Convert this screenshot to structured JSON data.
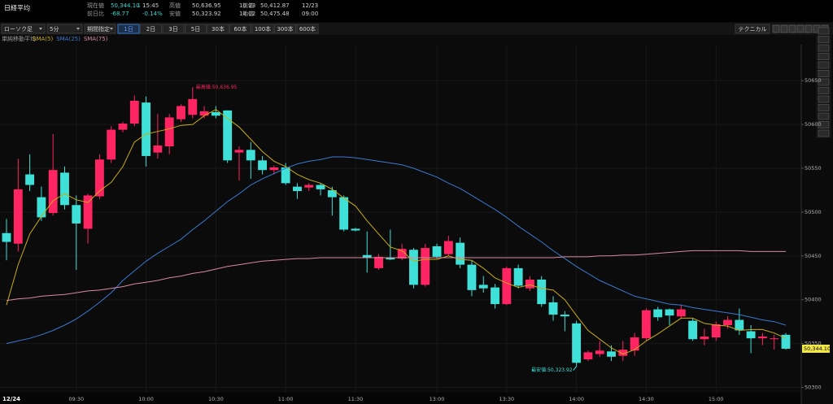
{
  "header": {
    "symbol": "日経平均",
    "quote": [
      {
        "label": "現在値",
        "value": "50,344.10",
        "arrow": "↓",
        "extra": "15:45"
      },
      {
        "label": "前日比",
        "value": "-68.77",
        "extra": "-0.14%"
      },
      {
        "label": "高値",
        "value": "50,636.95",
        "extra": "10:23"
      },
      {
        "label": "安値",
        "value": "50,323.92",
        "extra": "14:02"
      },
      {
        "label": "前値",
        "value": "50,412.87",
        "extra": "12/23"
      },
      {
        "label": "始値",
        "value": "50,475.48",
        "extra": "09:00"
      }
    ]
  },
  "toolbar": {
    "selects": [
      "ローソク足",
      "5分",
      "期間指定"
    ],
    "ranges": [
      "1日",
      "2日",
      "3日",
      "5日",
      "30本",
      "60本",
      "100本",
      "300本",
      "600本"
    ],
    "active": 0,
    "technical": "テクニカル"
  },
  "chart_data": {
    "type": "candlestick",
    "legend_title": "単純移動平均",
    "date_label": "12/24",
    "categories": [
      null,
      null,
      null,
      null,
      null,
      null,
      "09:30",
      null,
      null,
      null,
      null,
      null,
      "10:00",
      null,
      null,
      null,
      null,
      null,
      "10:30",
      null,
      null,
      null,
      null,
      null,
      "11:00",
      null,
      null,
      null,
      null,
      null,
      "11:30",
      null,
      null,
      null,
      null,
      null,
      null,
      "13:00",
      null,
      null,
      null,
      null,
      null,
      "13:30",
      null,
      null,
      null,
      null,
      null,
      "14:00",
      null,
      null,
      null,
      null,
      null,
      "14:30",
      null,
      null,
      null,
      null,
      null,
      "15:00",
      null,
      null,
      null,
      null,
      null,
      null
    ],
    "open": [
      50476,
      50464,
      50543,
      50517,
      50499,
      50545,
      50508,
      50481,
      50518,
      50560,
      50594,
      50601,
      50625,
      50568,
      50575,
      50606,
      50611,
      50610,
      50614,
      50616,
      50568,
      50571,
      50559,
      50548,
      50551,
      50529,
      50528,
      50531,
      50525,
      50517,
      50481,
      50451,
      50436,
      50448,
      50447,
      50457,
      50417,
      50461,
      50452,
      50465,
      50440,
      50417,
      50414,
      50395,
      50436,
      50413,
      50423,
      50397,
      50383,
      50373,
      50332,
      50338,
      50341,
      50336,
      50342,
      50356,
      50389,
      50389,
      50381,
      50376,
      50355,
      50357,
      50371,
      50377,
      50364,
      50356,
      50355,
      50360
    ],
    "high": [
      50492,
      50561,
      50566,
      50529,
      50589,
      50552,
      50519,
      50521,
      50566,
      50598,
      50603,
      50633,
      50632,
      50612,
      50612,
      50623,
      50636.95,
      50621,
      50621,
      50616,
      50575,
      50580,
      50564,
      50553,
      50556,
      50533,
      50533,
      50533,
      50529,
      50519,
      50482,
      50478,
      50452,
      50480,
      50464,
      50459,
      50464,
      50464,
      50473,
      50471,
      50445,
      50427,
      50418,
      50438,
      50440,
      50427,
      50427,
      50404,
      50387,
      50376,
      50342,
      50353,
      50348,
      50353,
      50362,
      50390,
      50392,
      50390,
      50394,
      50379,
      50367,
      50375,
      50381,
      50390,
      50371,
      50362,
      50360,
      50362
    ],
    "low": [
      50445,
      50455,
      50524,
      50490,
      50496,
      50503,
      50434,
      50464,
      50515,
      50556,
      50591,
      50598,
      50552,
      50561,
      50566,
      50603,
      50607,
      50607,
      50607,
      50556,
      50536,
      50538,
      50543,
      50543,
      50531,
      50515,
      50524,
      50519,
      50496,
      50478,
      50478,
      50431,
      50434,
      50445,
      50445,
      50413,
      50415,
      50447,
      50450,
      50436,
      50404,
      50408,
      50390,
      50394,
      50413,
      50410,
      50392,
      50376,
      50364,
      50323.92,
      50330,
      50335,
      50330,
      50330,
      50336,
      50353,
      50376,
      50371,
      50379,
      50353,
      50348,
      50353,
      50367,
      50360,
      50339,
      50348,
      50343,
      50343
    ],
    "close": [
      50466,
      50526,
      50531,
      50494,
      50548,
      50508,
      50487,
      50519,
      50560,
      50594,
      50601,
      50627,
      50564,
      50576,
      50608,
      50621,
      50629,
      50615,
      50610,
      50559,
      50571,
      50559,
      50548,
      50551,
      50533,
      50524,
      50531,
      50526,
      50517,
      50480,
      50479,
      50448,
      50449,
      50446,
      50458,
      50417,
      50459,
      50449,
      50467,
      50440,
      50411,
      50413,
      50395,
      50436,
      50416,
      50423,
      50395,
      50383,
      50381,
      50328,
      50340,
      50342,
      50335,
      50343,
      50357,
      50388,
      50380,
      50382,
      50389,
      50355,
      50358,
      50372,
      50377,
      50365,
      50356,
      50358,
      50356,
      50344.1
    ],
    "up_color": "#ff2462",
    "down_color": "#3fe0d8",
    "lines": [
      {
        "name": "SMA(5)",
        "color": "#c9ac12",
        "values": [
          50394,
          50440,
          50475,
          50495,
          50513,
          50521,
          50514,
          50511,
          50524,
          50534,
          50552,
          50580,
          50589,
          50592,
          50595,
          50599,
          50600,
          50610,
          50617,
          50607,
          50597,
          50583,
          50569,
          50558,
          50552,
          50543,
          50537,
          50533,
          50526,
          50516,
          50507,
          50490,
          50475,
          50460,
          50456,
          50444,
          50446,
          50446,
          50450,
          50446,
          50445,
          50436,
          50425,
          50419,
          50414,
          50417,
          50413,
          50411,
          50400,
          50382,
          50365,
          50355,
          50345,
          50338,
          50343,
          50353,
          50361,
          50370,
          50379,
          50379,
          50373,
          50371,
          50370,
          50365,
          50366,
          50366,
          50362,
          50356
        ]
      },
      {
        "name": "SMA(25)",
        "color": "#3b78d0",
        "values": [
          50350,
          50353,
          50356,
          50360,
          50365,
          50371,
          50378,
          50387,
          50397,
          50408,
          50422,
          50433,
          50444,
          50453,
          50461,
          50469,
          50480,
          50490,
          50501,
          50512,
          50521,
          50531,
          50538,
          50544,
          50550,
          50555,
          50558,
          50560,
          50563,
          50563,
          50562,
          50560,
          50558,
          50556,
          50554,
          50550,
          50545,
          50540,
          50533,
          50527,
          50519,
          50511,
          50503,
          50494,
          50484,
          50475,
          50466,
          50456,
          50447,
          50438,
          50430,
          50422,
          50416,
          50410,
          50404,
          50401,
          50398,
          50395,
          50394,
          50391,
          50389,
          50387,
          50385,
          50383,
          50380,
          50377,
          50375,
          50371
        ]
      },
      {
        "name": "SMA(75)",
        "color": "#d88aa2",
        "values": [
          50399,
          50401,
          50402,
          50404,
          50405,
          50406,
          50408,
          50410,
          50411,
          50413,
          50415,
          50418,
          50420,
          50422,
          50425,
          50427,
          50430,
          50432,
          50435,
          50438,
          50440,
          50442,
          50444,
          50445,
          50446,
          50447,
          50447,
          50448,
          50448,
          50448,
          50448,
          50448,
          50448,
          50448,
          50448,
          50448,
          50448,
          50448,
          50448,
          50448,
          50448,
          50448,
          50448,
          50448,
          50448,
          50448,
          50448,
          50448,
          50449,
          50449,
          50449,
          50450,
          50450,
          50451,
          50451,
          50452,
          50453,
          50454,
          50455,
          50456,
          50456,
          50456,
          50456,
          50456,
          50455,
          50455,
          50455,
          50455
        ]
      }
    ],
    "ylim": [
      50294,
      50691
    ],
    "yticks": [
      50300,
      50350,
      50400,
      50450,
      50500,
      50550,
      50600,
      50650
    ],
    "grid": true,
    "last_price": {
      "value": 50344.1,
      "label": "50,344.10"
    },
    "annotations": [
      {
        "index": 16,
        "value": 50636.95,
        "text": "最高値:50,636.95",
        "color": "#ff2462",
        "side": "top"
      },
      {
        "index": 49,
        "value": 50323.92,
        "text": "最安値:50,323.92",
        "color": "#3fe0d8",
        "side": "bottom"
      }
    ]
  }
}
